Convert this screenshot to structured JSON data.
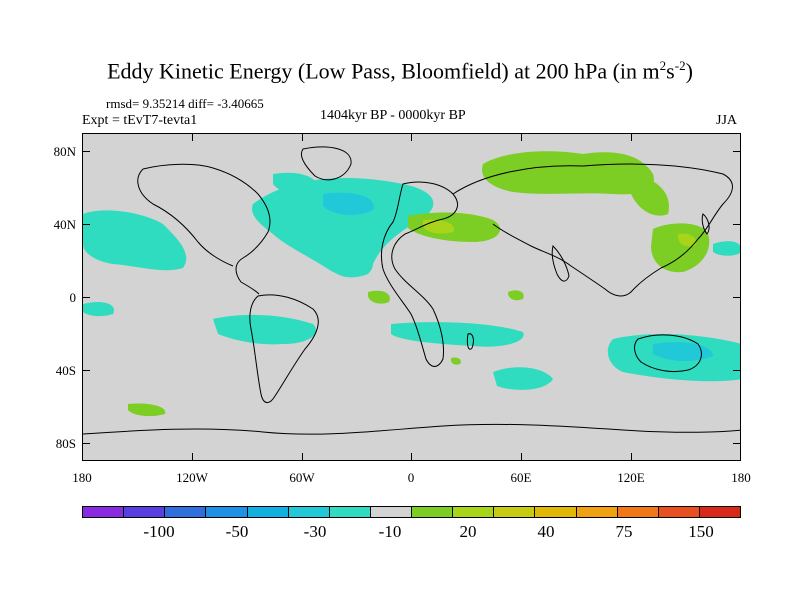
{
  "title": {
    "main": "Eddy Kinetic Energy (Low Pass, Bloomfield) at 200 hPa (in m",
    "sup1": "2",
    "mid": "s",
    "sup2": "-2",
    "close": ")"
  },
  "stats": "rmsd= 9.35214 diff= -3.40665",
  "experiment": "Expt = tEvT7-tevta1",
  "period": "1404kyr BP - 0000kyr BP",
  "season": "JJA",
  "lat_labels": [
    "80N",
    "40N",
    "0",
    "40S",
    "80S"
  ],
  "lon_labels": [
    "180",
    "120W",
    "60W",
    "0",
    "60E",
    "120E",
    "180"
  ],
  "colorbar": {
    "colors": [
      "#8a2be2",
      "#5a3fe0",
      "#2f6fdc",
      "#1e90e6",
      "#10b0e0",
      "#20c8d8",
      "#30dcc0",
      "#d3d3d3",
      "#7ccd24",
      "#a8d41a",
      "#c8cc10",
      "#e0b808",
      "#f0a010",
      "#f07818",
      "#e85020",
      "#d82818"
    ],
    "labels": [
      "-100",
      "-50",
      "-30",
      "-10",
      "20",
      "40",
      "75",
      "150"
    ]
  },
  "fill_colors": {
    "neg_light": "#30dcc0",
    "neg_mid": "#20c8d8",
    "neg_dark": "#10b0e0",
    "pos_light": "#7ccd24",
    "pos_mid": "#a8d41a"
  }
}
